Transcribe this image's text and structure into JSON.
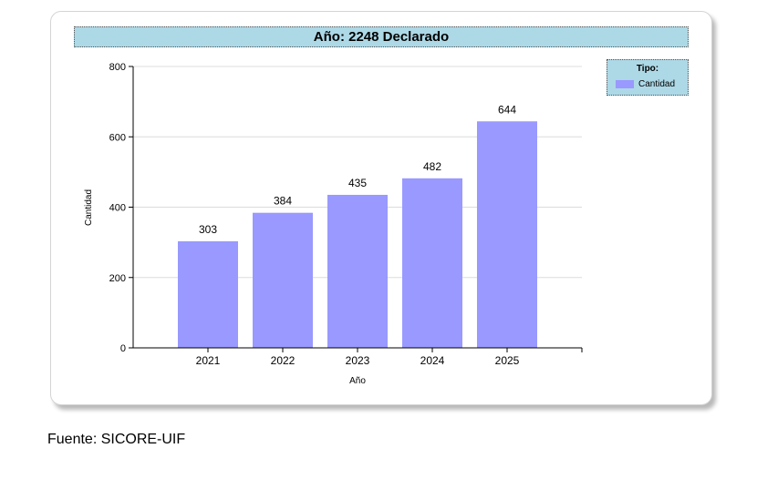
{
  "chart_data": {
    "type": "bar",
    "title": "Año: 2248 Declarado",
    "categories": [
      "2021",
      "2022",
      "2023",
      "2024",
      "2025"
    ],
    "series": [
      {
        "name": "Cantidad",
        "values": [
          303,
          384,
          435,
          482,
          644
        ]
      }
    ],
    "xlabel": "Año",
    "ylabel": "Cantidad",
    "ylim": [
      0,
      800
    ],
    "yticks": [
      0,
      200,
      400,
      600,
      800
    ],
    "grid": true,
    "legend_title": "Tipo:",
    "legend_placement": "top-right",
    "bar_color": "#9999ff",
    "header_color": "#add8e6"
  },
  "footer": "Fuente: SICORE-UIF"
}
